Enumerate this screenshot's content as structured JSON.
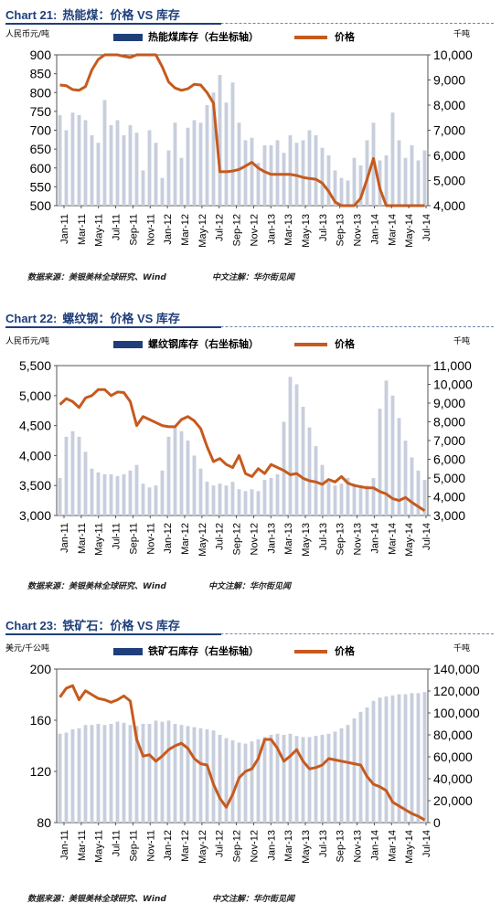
{
  "colors": {
    "price": "#c65a1e",
    "inventory": "#c7cedd",
    "legend_bar": "#1f3f7a",
    "title": "#1f3f7a"
  },
  "months": [
    "Jan-11",
    "Mar-11",
    "May-11",
    "Jul-11",
    "Sep-11",
    "Nov-11",
    "Jan-12",
    "Mar-12",
    "May-12",
    "Jul-12",
    "Sep-12",
    "Nov-12",
    "Jan-13",
    "Mar-13",
    "May-13",
    "Jul-13",
    "Sep-13",
    "Nov-13",
    "Jan-14",
    "Mar-14",
    "May-14",
    "Jul-14"
  ],
  "chart_data": [
    {
      "type": "bar+line",
      "chart_label": "Chart 21:",
      "title": "热能煤：价格 VS 库存",
      "left_unit": "人民币元/吨",
      "right_unit": "千吨",
      "legend_bar": "热能煤库存（右坐标轴）",
      "legend_line": "价格",
      "ylim_left": [
        500,
        900
      ],
      "ylim_right": [
        4000,
        10000
      ],
      "yticks_left": [
        "900",
        "850",
        "800",
        "750",
        "700",
        "650",
        "600",
        "550",
        "500"
      ],
      "yticks_right": [
        "10,000",
        "9,000",
        "8,000",
        "7,000",
        "6,000",
        "5,000",
        "4,000"
      ],
      "price": [
        820,
        818,
        808,
        806,
        816,
        860,
        888,
        908,
        915,
        902,
        896,
        893,
        905,
        932,
        918,
        900,
        868,
        828,
        812,
        806,
        810,
        822,
        820,
        800,
        772,
        590,
        590,
        592,
        596,
        605,
        615,
        600,
        590,
        583,
        583,
        583,
        583,
        580,
        575,
        572,
        570,
        560,
        538,
        510,
        495,
        490,
        498,
        520,
        570,
        625,
        545,
        465,
        462,
        460,
        458,
        455,
        450,
        445
      ],
      "inventory": [
        7600,
        7000,
        7700,
        7600,
        7400,
        6800,
        6500,
        8200,
        7200,
        7400,
        6800,
        7200,
        6900,
        5400,
        7000,
        6500,
        5100,
        6200,
        7300,
        5900,
        7100,
        7400,
        7300,
        8000,
        8500,
        9200,
        8100,
        8900,
        7300,
        6600,
        6700,
        5700,
        6400,
        6400,
        6600,
        6100,
        6800,
        6500,
        6600,
        7000,
        6800,
        6300,
        6000,
        5400,
        5100,
        5000,
        5900,
        5600,
        6600,
        7300,
        5800,
        6000,
        7700,
        6600,
        5900,
        6400,
        5800,
        6200
      ]
    },
    {
      "type": "bar+line",
      "chart_label": "Chart 22:",
      "title": "螺纹钢：价格 VS 库存",
      "left_unit": "人民币元/吨",
      "right_unit": "千吨",
      "legend_bar": "螺纹钢库存（右坐标轴）",
      "legend_line": "价格",
      "ylim_left": [
        3000,
        5500
      ],
      "ylim_right": [
        3000,
        11000
      ],
      "yticks_left": [
        "5,500",
        "5,000",
        "4,500",
        "4,000",
        "3,500",
        "3,000"
      ],
      "yticks_right": [
        "11,000",
        "10,000",
        "9,000",
        "8,000",
        "7,000",
        "6,000",
        "5,000",
        "4,000",
        "3,000"
      ],
      "price": [
        4850,
        4950,
        4900,
        4800,
        4960,
        5000,
        5100,
        5100,
        5000,
        5060,
        5050,
        4900,
        4500,
        4650,
        4600,
        4550,
        4500,
        4480,
        4480,
        4600,
        4650,
        4580,
        4450,
        4150,
        3900,
        3950,
        3850,
        3800,
        4000,
        3700,
        3650,
        3780,
        3700,
        3850,
        3800,
        3750,
        3680,
        3700,
        3620,
        3580,
        3560,
        3520,
        3600,
        3560,
        3650,
        3540,
        3500,
        3480,
        3460,
        3460,
        3400,
        3360,
        3280,
        3250,
        3300,
        3220,
        3150,
        3080
      ],
      "inventory": [
        5000,
        7200,
        7500,
        7200,
        6400,
        5500,
        5300,
        5200,
        5200,
        5100,
        5200,
        5400,
        5700,
        4700,
        4500,
        4600,
        5400,
        7200,
        7700,
        7500,
        7000,
        6200,
        5500,
        4800,
        4600,
        4700,
        4600,
        4800,
        4400,
        4300,
        4400,
        4300,
        4900,
        5000,
        5200,
        8000,
        10400,
        10000,
        8800,
        7700,
        6700,
        5700,
        4800,
        4600,
        4700,
        5000,
        4700,
        4500,
        4600,
        5000,
        8700,
        10200,
        9400,
        8200,
        7000,
        6100,
        5400,
        4900
      ]
    },
    {
      "type": "bar+line",
      "chart_label": "Chart 23:",
      "title": "铁矿石：价格 VS 库存",
      "left_unit": "美元/千公吨",
      "right_unit": "千吨",
      "legend_bar": "铁矿石库存（右坐标轴）",
      "legend_line": "价格",
      "ylim_left": [
        80,
        200
      ],
      "ylim_right": [
        0,
        140000
      ],
      "yticks_left": [
        "200",
        "160",
        "120",
        "80"
      ],
      "yticks_right": [
        "140,000",
        "120,000",
        "100,000",
        "80,000",
        "60,000",
        "40,000",
        "20,000",
        "0"
      ],
      "price": [
        178,
        185,
        187,
        176,
        183,
        180,
        177,
        176,
        174,
        176,
        179,
        175,
        145,
        132,
        133,
        128,
        132,
        137,
        140,
        142,
        138,
        130,
        126,
        125,
        110,
        99,
        92,
        102,
        115,
        120,
        122,
        130,
        145,
        145,
        138,
        128,
        132,
        137,
        128,
        122,
        123,
        125,
        130,
        129,
        128,
        127,
        126,
        125,
        116,
        110,
        108,
        105,
        96,
        93,
        90,
        87,
        85,
        82
      ],
      "inventory": [
        81000,
        82000,
        85000,
        86000,
        89000,
        89000,
        90000,
        89000,
        90000,
        92000,
        91000,
        89000,
        88000,
        90000,
        90000,
        93000,
        92000,
        93000,
        90000,
        89000,
        88000,
        87000,
        86000,
        85000,
        84000,
        80000,
        77000,
        75000,
        73000,
        72000,
        74000,
        76000,
        78000,
        80000,
        81000,
        80000,
        81000,
        79000,
        78000,
        78000,
        79000,
        80000,
        81000,
        83000,
        86000,
        89000,
        95000,
        101000,
        105000,
        111000,
        114000,
        115000,
        116000,
        117000,
        117000,
        118000,
        118000,
        119000
      ]
    }
  ],
  "source_left": "数据来源：美银美林全球研究、Wind",
  "source_right": "中文注解：华尔街见闻"
}
